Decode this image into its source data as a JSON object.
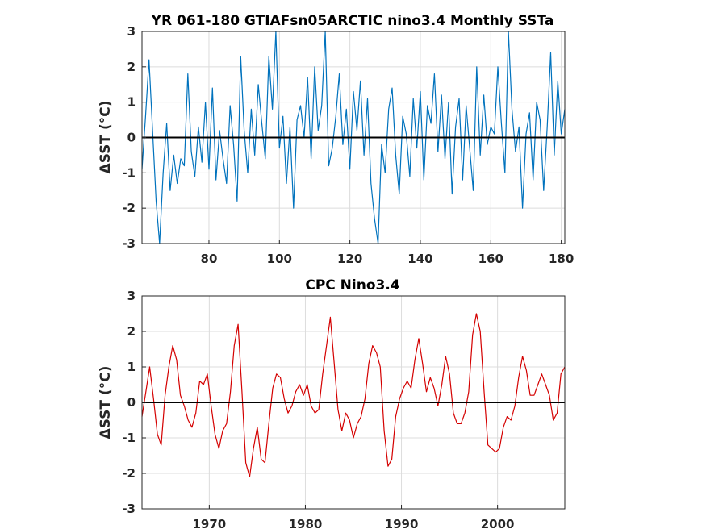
{
  "chart_data": [
    {
      "type": "line",
      "title": "YR 061-180 GTIAFsn05ARCTIC nino3.4 Monthly SSTa",
      "ylabel": "ΔSST (°C)",
      "xlabel": "",
      "xlim": [
        61,
        181
      ],
      "ylim": [
        -3,
        3
      ],
      "xticks": [
        80,
        100,
        120,
        140,
        160,
        180
      ],
      "yticks": [
        -3,
        -2,
        -1,
        0,
        1,
        2,
        3
      ],
      "grid": true,
      "zero_line": true,
      "series": [
        {
          "color": "#0072bd",
          "x": [
            61.0,
            62.0,
            63.0,
            64.0,
            65.0,
            66.0,
            67.0,
            68.0,
            69.0,
            70.0,
            71.0,
            72.0,
            73.0,
            74.0,
            75.0,
            76.0,
            77.0,
            78.0,
            79.0,
            80.0,
            81.0,
            82.0,
            83.0,
            84.0,
            85.0,
            86.0,
            87.0,
            88.0,
            89.0,
            90.0,
            91.0,
            92.0,
            93.0,
            94.0,
            95.0,
            96.0,
            97.0,
            98.0,
            99.0,
            100.0,
            101.0,
            102.0,
            103.0,
            104.0,
            105.0,
            106.0,
            107.0,
            108.0,
            109.0,
            110.0,
            111.0,
            112.0,
            113.0,
            114.0,
            115.0,
            116.0,
            117.0,
            118.0,
            119.0,
            120.0,
            121.0,
            122.0,
            123.0,
            124.0,
            125.0,
            126.0,
            127.0,
            128.0,
            129.0,
            130.0,
            131.0,
            132.0,
            133.0,
            134.0,
            135.0,
            136.0,
            137.0,
            138.0,
            139.0,
            140.0,
            141.0,
            142.0,
            143.0,
            144.0,
            145.0,
            146.0,
            147.0,
            148.0,
            149.0,
            150.0,
            151.0,
            152.0,
            153.0,
            154.0,
            155.0,
            156.0,
            157.0,
            158.0,
            159.0,
            160.0,
            161.0,
            162.0,
            163.0,
            164.0,
            165.0,
            166.0,
            167.0,
            168.0,
            169.0,
            170.0,
            171.0,
            172.0,
            173.0,
            174.0,
            175.0,
            176.0,
            177.0,
            178.0,
            179.0,
            180.0,
            181.0
          ],
          "y": [
            -0.9,
            0.6,
            2.2,
            0.2,
            -1.8,
            -3.0,
            -1.0,
            0.4,
            -1.5,
            -0.5,
            -1.3,
            -0.6,
            -0.8,
            1.8,
            -0.4,
            -1.1,
            0.3,
            -0.7,
            1.0,
            -0.9,
            1.4,
            -1.2,
            0.2,
            -0.6,
            -1.3,
            0.9,
            -0.2,
            -1.8,
            2.3,
            0.2,
            -1.0,
            0.8,
            -0.5,
            1.5,
            0.4,
            -0.6,
            2.3,
            0.8,
            3.0,
            -0.3,
            0.6,
            -1.3,
            0.3,
            -2.0,
            0.5,
            0.9,
            0.0,
            1.7,
            -0.6,
            2.0,
            0.2,
            0.9,
            3.0,
            -0.8,
            -0.3,
            0.6,
            1.8,
            -0.2,
            0.8,
            -0.9,
            1.3,
            0.2,
            1.6,
            -0.5,
            1.1,
            -1.3,
            -2.3,
            -3.0,
            -0.2,
            -1.0,
            0.8,
            1.4,
            -0.5,
            -1.6,
            0.6,
            0.1,
            -1.1,
            1.1,
            -0.3,
            1.3,
            -1.2,
            0.9,
            0.4,
            1.8,
            -0.4,
            1.2,
            -0.6,
            1.0,
            -1.6,
            0.3,
            1.1,
            -1.2,
            0.9,
            -0.3,
            -1.5,
            2.0,
            -0.5,
            1.2,
            -0.2,
            0.3,
            0.1,
            2.0,
            0.4,
            -1.0,
            3.0,
            0.8,
            -0.4,
            0.3,
            -2.0,
            0.1,
            0.7,
            -1.2,
            1.0,
            0.5,
            -1.5,
            0.3,
            2.4,
            -0.5,
            1.6,
            0.1,
            0.8
          ]
        }
      ]
    },
    {
      "type": "line",
      "title": "CPC Nino3.4",
      "ylabel": "ΔSST (°C)",
      "xlabel": "",
      "xlim": [
        1963,
        2007
      ],
      "ylim": [
        -3,
        3
      ],
      "xticks": [
        1970,
        1980,
        1990,
        2000
      ],
      "yticks": [
        -3,
        -2,
        -1,
        0,
        1,
        2,
        3
      ],
      "grid": true,
      "zero_line": true,
      "series": [
        {
          "color": "#d40000",
          "x": [
            1963.0,
            1963.4,
            1963.8,
            1964.2,
            1964.6,
            1965.0,
            1965.4,
            1965.8,
            1966.2,
            1966.6,
            1967.0,
            1967.4,
            1967.8,
            1968.2,
            1968.6,
            1969.0,
            1969.4,
            1969.8,
            1970.2,
            1970.6,
            1971.0,
            1971.4,
            1971.8,
            1972.2,
            1972.6,
            1973.0,
            1973.4,
            1973.8,
            1974.2,
            1974.6,
            1975.0,
            1975.4,
            1975.8,
            1976.2,
            1976.6,
            1977.0,
            1977.4,
            1977.8,
            1978.2,
            1978.6,
            1979.0,
            1979.4,
            1979.8,
            1980.2,
            1980.6,
            1981.0,
            1981.4,
            1981.8,
            1982.2,
            1982.6,
            1983.0,
            1983.4,
            1983.8,
            1984.2,
            1984.6,
            1985.0,
            1985.4,
            1985.8,
            1986.2,
            1986.6,
            1987.0,
            1987.4,
            1987.8,
            1988.2,
            1988.6,
            1989.0,
            1989.4,
            1989.8,
            1990.2,
            1990.6,
            1991.0,
            1991.4,
            1991.8,
            1992.2,
            1992.6,
            1993.0,
            1993.4,
            1993.8,
            1994.2,
            1994.6,
            1995.0,
            1995.4,
            1995.8,
            1996.2,
            1996.6,
            1997.0,
            1997.4,
            1997.8,
            1998.2,
            1998.6,
            1999.0,
            1999.4,
            1999.8,
            2000.2,
            2000.6,
            2001.0,
            2001.4,
            2001.8,
            2002.2,
            2002.6,
            2003.0,
            2003.4,
            2003.8,
            2004.2,
            2004.6,
            2005.0,
            2005.4,
            2005.8,
            2006.2,
            2006.6,
            2007.0
          ],
          "y": [
            -0.4,
            0.3,
            1.0,
            0.1,
            -0.9,
            -1.2,
            0.2,
            1.0,
            1.6,
            1.2,
            0.2,
            -0.1,
            -0.5,
            -0.7,
            -0.3,
            0.6,
            0.5,
            0.8,
            -0.1,
            -0.9,
            -1.3,
            -0.8,
            -0.6,
            0.3,
            1.6,
            2.2,
            0.3,
            -1.7,
            -2.1,
            -1.3,
            -0.7,
            -1.6,
            -1.7,
            -0.6,
            0.4,
            0.8,
            0.7,
            0.1,
            -0.3,
            -0.1,
            0.3,
            0.5,
            0.2,
            0.5,
            -0.1,
            -0.3,
            -0.2,
            0.8,
            1.6,
            2.4,
            1.1,
            -0.2,
            -0.8,
            -0.3,
            -0.5,
            -1.0,
            -0.6,
            -0.4,
            0.1,
            1.1,
            1.6,
            1.4,
            1.0,
            -0.8,
            -1.8,
            -1.6,
            -0.4,
            0.1,
            0.4,
            0.6,
            0.4,
            1.2,
            1.8,
            1.1,
            0.3,
            0.7,
            0.4,
            -0.1,
            0.5,
            1.3,
            0.8,
            -0.3,
            -0.6,
            -0.6,
            -0.3,
            0.3,
            1.9,
            2.5,
            2.0,
            0.3,
            -1.2,
            -1.3,
            -1.4,
            -1.3,
            -0.7,
            -0.4,
            -0.5,
            -0.1,
            0.7,
            1.3,
            0.9,
            0.2,
            0.2,
            0.5,
            0.8,
            0.5,
            0.2,
            -0.5,
            -0.3,
            0.8,
            1.0
          ]
        }
      ]
    }
  ]
}
